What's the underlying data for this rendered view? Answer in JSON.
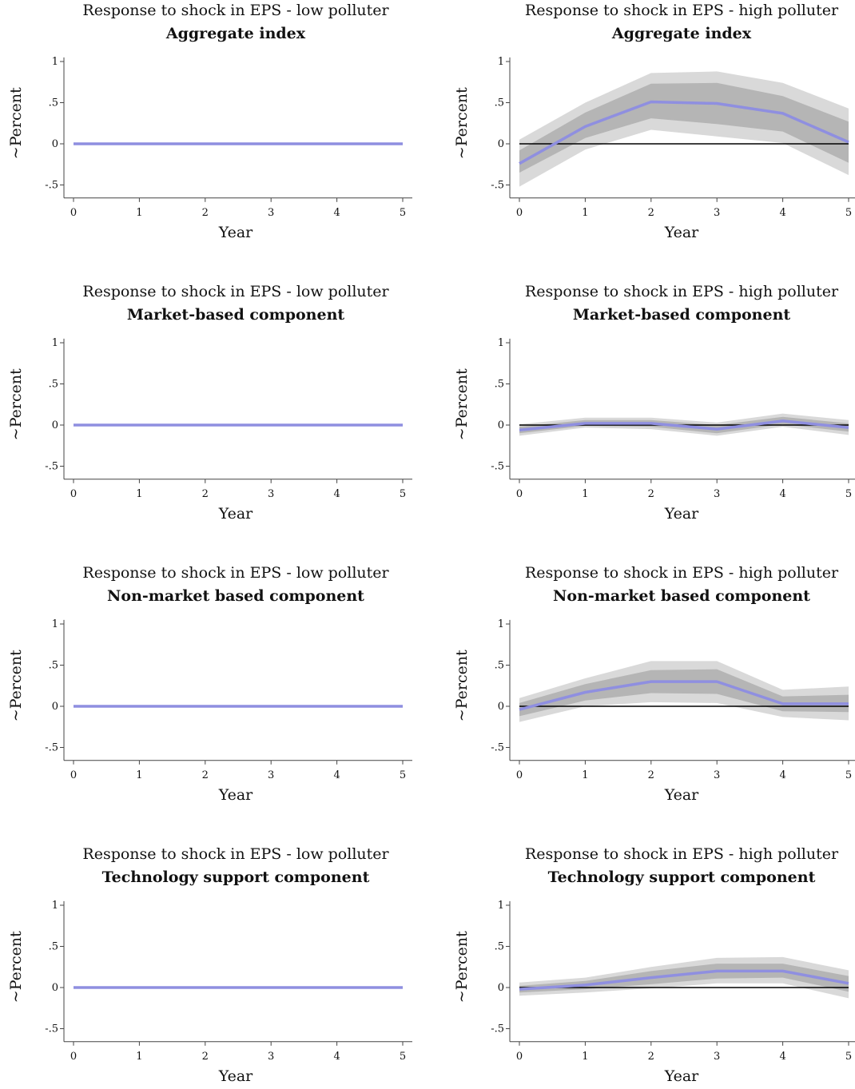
{
  "chart_data": [
    {
      "type": "line",
      "title": "Response to shock in EPS  - low polluter",
      "subtitle": "Aggregate index",
      "xlabel": "Year",
      "ylabel": "~Percent",
      "x": [
        0,
        1,
        2,
        3,
        4,
        5
      ],
      "xlim": [
        0,
        5
      ],
      "ylim": [
        -0.6,
        1.05
      ],
      "x_ticks": [
        "0",
        "1",
        "2",
        "3",
        "4",
        "5"
      ],
      "y_ticks": [
        {
          "value": 1,
          "label": "1"
        },
        {
          "value": 0.5,
          "label": ".5"
        },
        {
          "value": 0,
          "label": "0"
        },
        {
          "value": -0.5,
          "label": "-.5"
        }
      ],
      "zero_line": true,
      "line_color": "#8f8fe0",
      "series": [
        {
          "values": [
            0,
            0,
            0,
            0,
            0,
            0
          ],
          "ci68": [
            [
              0,
              0,
              0,
              0,
              0,
              0
            ],
            [
              0,
              0,
              0,
              0,
              0,
              0
            ]
          ],
          "ci90": [
            [
              0,
              0,
              0,
              0,
              0,
              0
            ],
            [
              0,
              0,
              0,
              0,
              0,
              0
            ]
          ]
        }
      ]
    },
    {
      "type": "line",
      "title": "Response to shock in EPS - high polluter",
      "subtitle": "Aggregate index",
      "xlabel": "Year",
      "ylabel": "~Percent",
      "x": [
        0,
        1,
        2,
        3,
        4,
        5
      ],
      "xlim": [
        0,
        5
      ],
      "ylim": [
        -0.6,
        1.05
      ],
      "x_ticks": [
        "0",
        "1",
        "2",
        "3",
        "4",
        "5"
      ],
      "y_ticks": [
        {
          "value": 1,
          "label": "1"
        },
        {
          "value": 0.5,
          "label": ".5"
        },
        {
          "value": 0,
          "label": "0"
        },
        {
          "value": -0.5,
          "label": "-.5"
        }
      ],
      "zero_line": true,
      "line_color": "#8f8fe0",
      "series": [
        {
          "values": [
            -0.24,
            0.21,
            0.51,
            0.49,
            0.37,
            0.02
          ],
          "ci68": [
            [
              -0.35,
              0.07,
              0.31,
              0.24,
              0.15,
              -0.23
            ],
            [
              -0.08,
              0.38,
              0.73,
              0.74,
              0.58,
              0.27
            ]
          ],
          "ci90": [
            [
              -0.52,
              -0.07,
              0.17,
              0.09,
              0.01,
              -0.38
            ],
            [
              0.05,
              0.5,
              0.86,
              0.88,
              0.74,
              0.43
            ]
          ]
        }
      ]
    },
    {
      "type": "line",
      "title": "Response to shock in EPS  - low polluter",
      "subtitle": "Market-based component",
      "xlabel": "Year",
      "ylabel": "~Percent",
      "x": [
        0,
        1,
        2,
        3,
        4,
        5
      ],
      "xlim": [
        0,
        5
      ],
      "ylim": [
        -0.6,
        1.05
      ],
      "x_ticks": [
        "0",
        "1",
        "2",
        "3",
        "4",
        "5"
      ],
      "y_ticks": [
        {
          "value": 1,
          "label": "1"
        },
        {
          "value": 0.5,
          "label": ".5"
        },
        {
          "value": 0,
          "label": "0"
        },
        {
          "value": -0.5,
          "label": "-.5"
        }
      ],
      "zero_line": true,
      "line_color": "#8f8fe0",
      "series": [
        {
          "values": [
            0,
            0,
            0,
            0,
            0,
            0
          ],
          "ci68": [
            [
              0,
              0,
              0,
              0,
              0,
              0
            ],
            [
              0,
              0,
              0,
              0,
              0,
              0
            ]
          ],
          "ci90": [
            [
              0,
              0,
              0,
              0,
              0,
              0
            ],
            [
              0,
              0,
              0,
              0,
              0,
              0
            ]
          ]
        }
      ]
    },
    {
      "type": "line",
      "title": "Response to shock in EPS - high polluter",
      "subtitle": "Market-based component",
      "xlabel": "Year",
      "ylabel": "~Percent",
      "x": [
        0,
        1,
        2,
        3,
        4,
        5
      ],
      "xlim": [
        0,
        5
      ],
      "ylim": [
        -0.6,
        1.05
      ],
      "x_ticks": [
        "0",
        "1",
        "2",
        "3",
        "4",
        "5"
      ],
      "y_ticks": [
        {
          "value": 1,
          "label": "1"
        },
        {
          "value": 0.5,
          "label": ".5"
        },
        {
          "value": 0,
          "label": "0"
        },
        {
          "value": -0.5,
          "label": "-.5"
        }
      ],
      "zero_line": true,
      "line_color": "#8f8fe0",
      "series": [
        {
          "values": [
            -0.06,
            0.02,
            0.02,
            -0.05,
            0.05,
            -0.03
          ],
          "ci68": [
            [
              -0.1,
              -0.01,
              -0.02,
              -0.1,
              0.01,
              -0.08
            ],
            [
              -0.02,
              0.06,
              0.06,
              0.0,
              0.1,
              0.02
            ]
          ],
          "ci90": [
            [
              -0.13,
              -0.03,
              -0.05,
              -0.13,
              -0.02,
              -0.12
            ],
            [
              0.01,
              0.09,
              0.09,
              0.03,
              0.14,
              0.06
            ]
          ]
        }
      ]
    },
    {
      "type": "line",
      "title": "Response to shock in EPS  - low polluter",
      "subtitle": "Non-market based component",
      "xlabel": "Year",
      "ylabel": "~Percent",
      "x": [
        0,
        1,
        2,
        3,
        4,
        5
      ],
      "xlim": [
        0,
        5
      ],
      "ylim": [
        -0.6,
        1.05
      ],
      "x_ticks": [
        "0",
        "1",
        "2",
        "3",
        "4",
        "5"
      ],
      "y_ticks": [
        {
          "value": 1,
          "label": "1"
        },
        {
          "value": 0.5,
          "label": ".5"
        },
        {
          "value": 0,
          "label": "0"
        },
        {
          "value": -0.5,
          "label": "-.5"
        }
      ],
      "zero_line": true,
      "line_color": "#8f8fe0",
      "series": [
        {
          "values": [
            0,
            0,
            0,
            0,
            0,
            0
          ],
          "ci68": [
            [
              0,
              0,
              0,
              0,
              0,
              0
            ],
            [
              0,
              0,
              0,
              0,
              0,
              0
            ]
          ],
          "ci90": [
            [
              0,
              0,
              0,
              0,
              0,
              0
            ],
            [
              0,
              0,
              0,
              0,
              0,
              0
            ]
          ]
        }
      ]
    },
    {
      "type": "line",
      "title": "Response to shock in EPS - high polluter",
      "subtitle": "Non-market based component",
      "xlabel": "Year",
      "ylabel": "~Percent",
      "x": [
        0,
        1,
        2,
        3,
        4,
        5
      ],
      "xlim": [
        0,
        5
      ],
      "ylim": [
        -0.6,
        1.05
      ],
      "x_ticks": [
        "0",
        "1",
        "2",
        "3",
        "4",
        "5"
      ],
      "y_ticks": [
        {
          "value": 1,
          "label": "1"
        },
        {
          "value": 0.5,
          "label": ".5"
        },
        {
          "value": 0,
          "label": "0"
        },
        {
          "value": -0.5,
          "label": "-.5"
        }
      ],
      "zero_line": true,
      "line_color": "#8f8fe0",
      "series": [
        {
          "values": [
            -0.04,
            0.17,
            0.3,
            0.3,
            0.03,
            0.03
          ],
          "ci68": [
            [
              -0.12,
              0.07,
              0.16,
              0.15,
              -0.06,
              -0.07
            ],
            [
              0.04,
              0.27,
              0.44,
              0.45,
              0.12,
              0.14
            ]
          ],
          "ci90": [
            [
              -0.19,
              0.0,
              0.05,
              0.04,
              -0.13,
              -0.17
            ],
            [
              0.1,
              0.34,
              0.55,
              0.55,
              0.2,
              0.24
            ]
          ]
        }
      ]
    },
    {
      "type": "line",
      "title": "Response to shock in EPS  - low polluter",
      "subtitle": "Technology support component",
      "xlabel": "Year",
      "ylabel": "~Percent",
      "x": [
        0,
        1,
        2,
        3,
        4,
        5
      ],
      "xlim": [
        0,
        5
      ],
      "ylim": [
        -0.6,
        1.05
      ],
      "x_ticks": [
        "0",
        "1",
        "2",
        "3",
        "4",
        "5"
      ],
      "y_ticks": [
        {
          "value": 1,
          "label": "1"
        },
        {
          "value": 0.5,
          "label": ".5"
        },
        {
          "value": 0,
          "label": "0"
        },
        {
          "value": -0.5,
          "label": "-.5"
        }
      ],
      "zero_line": true,
      "line_color": "#8f8fe0",
      "series": [
        {
          "values": [
            0,
            0,
            0,
            0,
            0,
            0
          ],
          "ci68": [
            [
              0,
              0,
              0,
              0,
              0,
              0
            ],
            [
              0,
              0,
              0,
              0,
              0,
              0
            ]
          ],
          "ci90": [
            [
              0,
              0,
              0,
              0,
              0,
              0
            ],
            [
              0,
              0,
              0,
              0,
              0,
              0
            ]
          ]
        }
      ]
    },
    {
      "type": "line",
      "title": "Response to shock in EPS - high polluter",
      "subtitle": "Technology support component",
      "xlabel": "Year",
      "ylabel": "~Percent",
      "x": [
        0,
        1,
        2,
        3,
        4,
        5
      ],
      "xlim": [
        0,
        5
      ],
      "ylim": [
        -0.6,
        1.05
      ],
      "x_ticks": [
        "0",
        "1",
        "2",
        "3",
        "4",
        "5"
      ],
      "y_ticks": [
        {
          "value": 1,
          "label": "1"
        },
        {
          "value": 0.5,
          "label": ".5"
        },
        {
          "value": 0,
          "label": "0"
        },
        {
          "value": -0.5,
          "label": "-.5"
        }
      ],
      "zero_line": true,
      "line_color": "#8f8fe0",
      "series": [
        {
          "values": [
            -0.02,
            0.03,
            0.12,
            0.2,
            0.2,
            0.05
          ],
          "ci68": [
            [
              -0.06,
              -0.02,
              0.04,
              0.11,
              0.12,
              -0.05
            ],
            [
              0.02,
              0.08,
              0.2,
              0.29,
              0.29,
              0.14
            ]
          ],
          "ci90": [
            [
              -0.1,
              -0.06,
              -0.01,
              0.05,
              0.05,
              -0.13
            ],
            [
              0.06,
              0.12,
              0.25,
              0.36,
              0.37,
              0.21
            ]
          ]
        }
      ]
    }
  ]
}
